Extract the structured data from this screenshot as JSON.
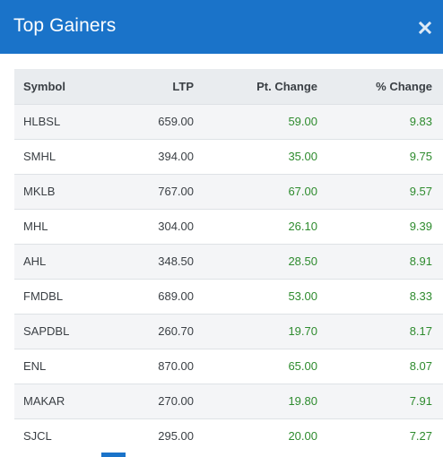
{
  "header": {
    "title": "Top Gainers",
    "close_icon": "close-icon"
  },
  "colors": {
    "header_bg": "#1a73c9",
    "positive": "#2e8b2e",
    "table_header_bg": "#e9ecef"
  },
  "table": {
    "columns": [
      "Symbol",
      "LTP",
      "Pt. Change",
      "% Change"
    ],
    "rows": [
      {
        "symbol": "HLBSL",
        "ltp": "659.00",
        "pt_change": "59.00",
        "pct_change": "9.83"
      },
      {
        "symbol": "SMHL",
        "ltp": "394.00",
        "pt_change": "35.00",
        "pct_change": "9.75"
      },
      {
        "symbol": "MKLB",
        "ltp": "767.00",
        "pt_change": "67.00",
        "pct_change": "9.57"
      },
      {
        "symbol": "MHL",
        "ltp": "304.00",
        "pt_change": "26.10",
        "pct_change": "9.39"
      },
      {
        "symbol": "AHL",
        "ltp": "348.50",
        "pt_change": "28.50",
        "pct_change": "8.91"
      },
      {
        "symbol": "FMDBL",
        "ltp": "689.00",
        "pt_change": "53.00",
        "pct_change": "8.33"
      },
      {
        "symbol": "SAPDBL",
        "ltp": "260.70",
        "pt_change": "19.70",
        "pct_change": "8.17"
      },
      {
        "symbol": "ENL",
        "ltp": "870.00",
        "pt_change": "65.00",
        "pct_change": "8.07"
      },
      {
        "symbol": "MAKAR",
        "ltp": "270.00",
        "pt_change": "19.80",
        "pct_change": "7.91"
      },
      {
        "symbol": "SJCL",
        "ltp": "295.00",
        "pt_change": "20.00",
        "pct_change": "7.27"
      }
    ]
  }
}
